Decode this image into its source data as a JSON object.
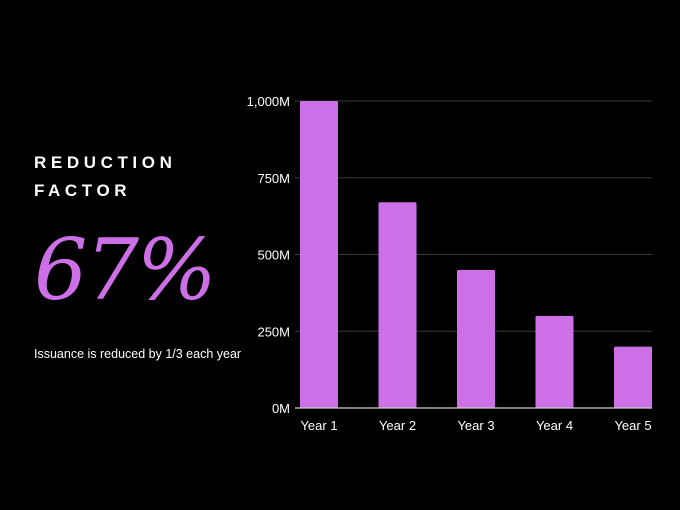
{
  "metric": {
    "heading_line1": "REDUCTION",
    "heading_line2": "FACTOR",
    "value": "67%",
    "caption": "Issuance is reduced by 1/3 each year"
  },
  "colors": {
    "background": "#000000",
    "bar": "#cd6fe6",
    "gridline": "#3a3a3a",
    "axis": "#cfcfcf",
    "text": "#ffffff"
  },
  "chart_data": {
    "type": "bar",
    "categories": [
      "Year 1",
      "Year 2",
      "Year 3",
      "Year 4",
      "Year 5"
    ],
    "values": [
      1000,
      670,
      450,
      300,
      200
    ],
    "unit": "M",
    "ylim": [
      0,
      1000
    ],
    "yticks": [
      0,
      250,
      500,
      750,
      1000
    ],
    "ytick_labels": [
      "0M",
      "250M",
      "500M",
      "750M",
      "1,000M"
    ],
    "grid": true,
    "legend": "none"
  }
}
